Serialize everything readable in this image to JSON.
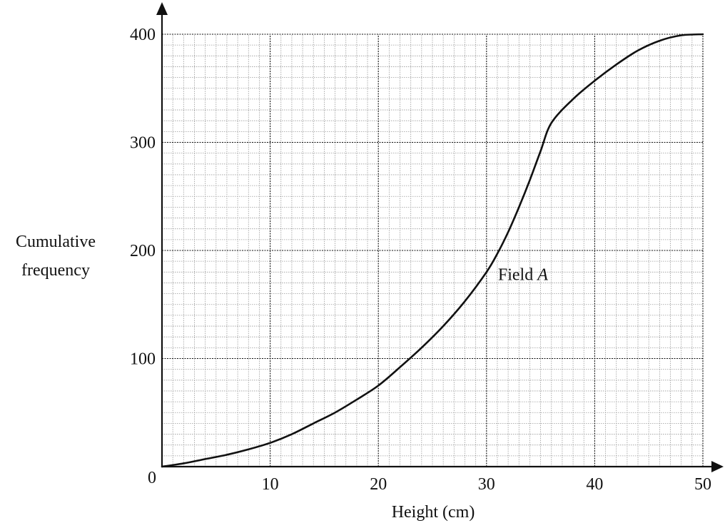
{
  "chart_data": {
    "type": "line",
    "title": "",
    "xlabel": "Height (cm)",
    "ylabel_lines": [
      "Cumulative",
      "frequency"
    ],
    "origin_label": "0",
    "xlim": [
      0,
      50
    ],
    "ylim": [
      0,
      400
    ],
    "x_ticks": [
      10,
      20,
      30,
      40,
      50
    ],
    "x_tick_labels": [
      "10",
      "20",
      "30",
      "40",
      "50"
    ],
    "y_ticks": [
      100,
      200,
      300,
      400
    ],
    "y_tick_labels": [
      "100",
      "200",
      "300",
      "400"
    ],
    "grid": true,
    "grid_minor_step_x": 1,
    "grid_minor_step_y": 10,
    "grid_major_step_x": 10,
    "grid_major_step_y": 100,
    "curve_label": {
      "prefix": "Field ",
      "italic": "A",
      "x": 30.6,
      "y": 178
    },
    "series": [
      {
        "x": [
          0,
          2,
          4,
          6,
          8,
          10,
          12,
          14,
          16,
          18,
          20,
          22,
          24,
          26,
          28,
          30,
          31,
          32,
          33,
          34,
          35,
          36,
          38,
          40,
          42,
          44,
          46,
          48,
          50
        ],
        "y": [
          0,
          3,
          7,
          11,
          16,
          22,
          30,
          40,
          50,
          62,
          75,
          92,
          110,
          130,
          153,
          180,
          197,
          217,
          240,
          265,
          292,
          318,
          340,
          357,
          372,
          385,
          394,
          399,
          400
        ]
      }
    ],
    "colors": {
      "grid_major": "#111111",
      "grid_minor": "#9a9a9a",
      "curve": "#111111",
      "axis": "#111111"
    }
  }
}
